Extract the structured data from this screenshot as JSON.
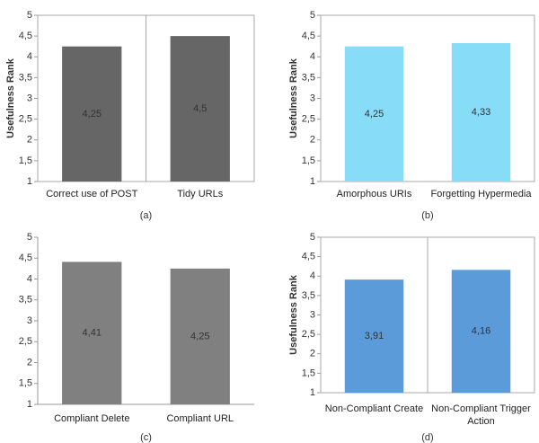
{
  "chart_data": [
    {
      "type": "bar",
      "caption": "(a)",
      "ylabel": "Usefulness Rank",
      "categories": [
        "Correct use of POST",
        "Tidy URLs"
      ],
      "values": [
        4.25,
        4.5
      ],
      "value_labels": [
        "4,25",
        "4,5"
      ],
      "color": "#666666",
      "ylim": [
        1,
        5
      ],
      "yticks": [
        1,
        {
          "value": 1.5,
          "label": "1,5"
        },
        2,
        {
          "value": 2.5,
          "label": "2,5"
        },
        3,
        {
          "value": 3.5,
          "label": "3,5"
        },
        4,
        {
          "value": 4.5,
          "label": "4,5"
        },
        5
      ],
      "frame": true,
      "separators": true
    },
    {
      "type": "bar",
      "caption": "(b)",
      "ylabel": "Usefulness Rank",
      "categories": [
        "Amorphous URIs",
        "Forgetting Hypermedia"
      ],
      "values": [
        4.25,
        4.33
      ],
      "value_labels": [
        "4,25",
        "4,33"
      ],
      "color": "#87dcf8",
      "ylim": [
        1,
        5
      ],
      "yticks": [
        1,
        {
          "value": 1.5,
          "label": "1,5"
        },
        2,
        {
          "value": 2.5,
          "label": "2,5"
        },
        3,
        {
          "value": 3.5,
          "label": "3,5"
        },
        4,
        {
          "value": 4.5,
          "label": "4,5"
        },
        5
      ],
      "frame": true,
      "separators": false
    },
    {
      "type": "bar",
      "caption": "(c)",
      "categories": [
        "Compliant Delete",
        "Compliant URL"
      ],
      "values": [
        4.41,
        4.25
      ],
      "value_labels": [
        "4,41",
        "4,25"
      ],
      "color": "#808080",
      "ylim": [
        1,
        5
      ],
      "yticks": [
        1,
        {
          "value": 1.5,
          "label": "1,5"
        },
        2,
        {
          "value": 2.5,
          "label": "2,5"
        },
        3,
        {
          "value": 3.5,
          "label": "3,5"
        },
        4,
        {
          "value": 4.5,
          "label": "4,5"
        },
        5
      ],
      "frame": false,
      "separators": false
    },
    {
      "type": "bar",
      "caption": "(d)",
      "ylabel": "Usefulness Rank",
      "categories": [
        "Non-Compliant Create",
        "Non-Compliant Trigger Action"
      ],
      "values": [
        3.91,
        4.16
      ],
      "value_labels": [
        "3,91",
        "4,16"
      ],
      "color": "#5b9bd9",
      "ylim": [
        1,
        5
      ],
      "yticks": [
        1,
        {
          "value": 1.5,
          "label": "1,5"
        },
        2,
        {
          "value": 2.5,
          "label": "2,5"
        },
        3,
        {
          "value": 3.5,
          "label": "3,5"
        },
        4,
        {
          "value": 4.5,
          "label": "4,5"
        },
        5
      ],
      "frame": true,
      "separators": true
    }
  ]
}
